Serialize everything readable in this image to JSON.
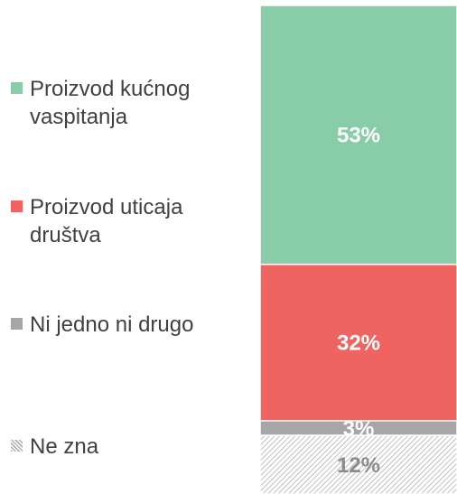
{
  "chart_data": {
    "type": "stacked-bar",
    "series": [
      {
        "name": "Proizvod kućnog vaspitanja",
        "color": "#88cca8",
        "values": [
          53
        ],
        "value_labels": [
          "53%"
        ]
      },
      {
        "name": "Proizvod uticaja društva",
        "color": "#ef6461",
        "values": [
          32
        ],
        "value_labels": [
          "32%"
        ]
      },
      {
        "name": "Ni jedno ni drugo",
        "color": "#a6a6a6",
        "values": [
          3
        ],
        "value_labels": [
          "3%"
        ]
      },
      {
        "name": "Ne zna",
        "color": "#a6a6a6",
        "pattern": "hatch",
        "values": [
          12
        ],
        "value_labels": [
          "12%"
        ]
      }
    ]
  }
}
